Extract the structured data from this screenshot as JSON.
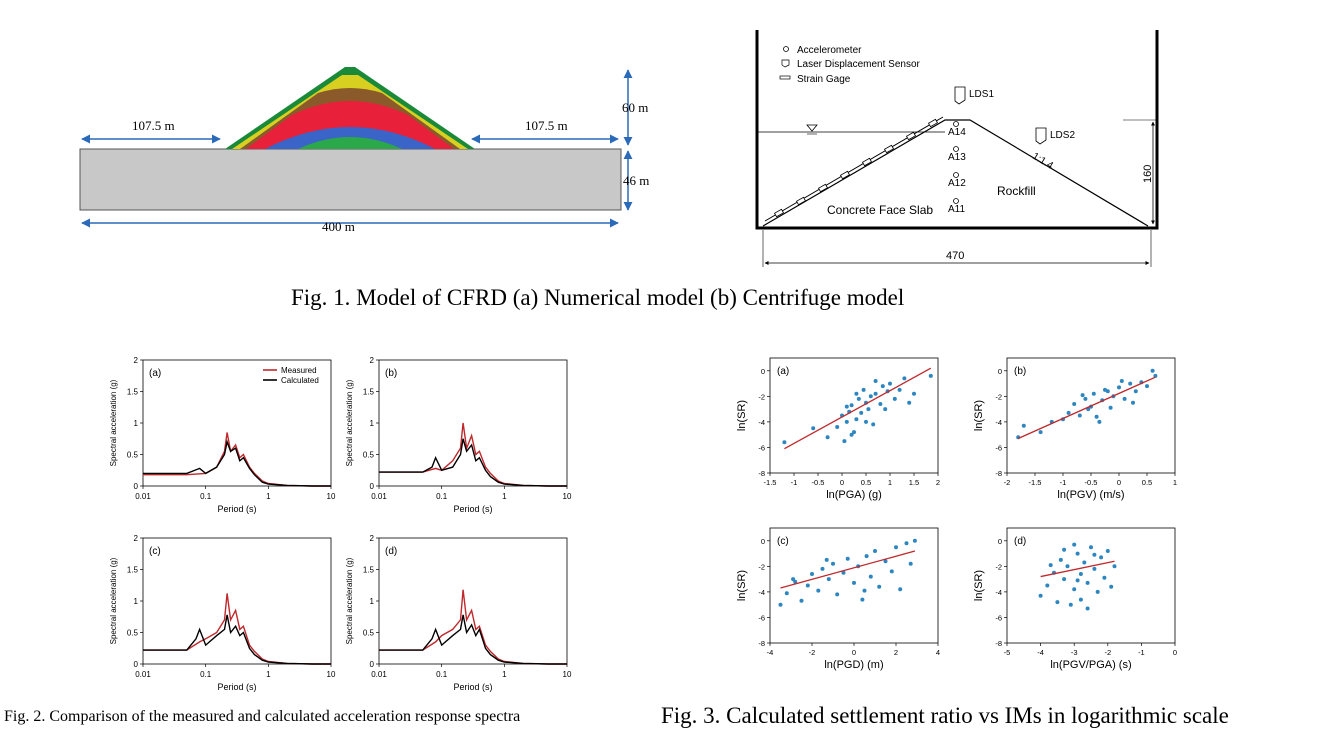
{
  "fig1": {
    "caption": "Fig. 1. Model of CFRD (a) Numerical model (b) Centrifuge model",
    "numerical": {
      "left_width": "107.5 m",
      "right_width": "107.5 m",
      "dam_height": "60 m",
      "foundation_depth": "46 m",
      "total_width": "400 m",
      "layer_colors": [
        "#1a8a3a",
        "#d8d020",
        "#8a5a2a",
        "#e8203a",
        "#3a64c8",
        "#2aa84a"
      ],
      "foundation_color": "#c8c8c8",
      "arrow_color": "#2a6ab8"
    },
    "centrifuge": {
      "legend": [
        "Accelerometer",
        "Laser Displacement Sensor",
        "Strain Gage"
      ],
      "lds1": "LDS1",
      "lds2": "LDS2",
      "slope": "1:1.4",
      "accelerometers": [
        "A14",
        "A13",
        "A12",
        "A11"
      ],
      "face_slab": "Concrete Face Slab",
      "rockfill": "Rockfill",
      "height": "160",
      "width": "470"
    }
  },
  "fig2": {
    "caption": "Fig. 2. Comparison of the measured and calculated acceleration response spectra",
    "legend": {
      "measured": "Measured",
      "calculated": "Calculated"
    },
    "xlabel": "Period (s)",
    "ylabel": "Spectral acceleration (g)",
    "x_ticks": [
      "0.01",
      "0.1",
      "1",
      "10"
    ],
    "y_ticks": [
      "0",
      "0.5",
      "1",
      "1.5",
      "2"
    ],
    "colors": {
      "measured": "#c0282c",
      "calculated": "#000000"
    }
  },
  "fig3": {
    "caption": "Fig. 3. Calculated settlement ratio vs IMs in logarithmic scale",
    "ylabel": "ln(SR)",
    "colors": {
      "points": "#2e86c1",
      "fit": "#c0282c"
    }
  },
  "chart_data": [
    {
      "type": "line",
      "panel": "(a)",
      "xscale": "log",
      "xlim": [
        0.01,
        10
      ],
      "ylim": [
        0,
        2
      ],
      "xlabel": "Period (s)",
      "ylabel": "Spectral acceleration (g)",
      "series": [
        {
          "name": "Measured",
          "x": [
            0.01,
            0.05,
            0.1,
            0.15,
            0.2,
            0.22,
            0.25,
            0.3,
            0.35,
            0.4,
            0.5,
            0.6,
            0.8,
            1,
            2,
            5,
            10
          ],
          "y": [
            0.18,
            0.18,
            0.2,
            0.3,
            0.55,
            0.85,
            0.55,
            0.65,
            0.45,
            0.5,
            0.3,
            0.2,
            0.08,
            0.04,
            0.01,
            0.0,
            0.0
          ]
        },
        {
          "name": "Calculated",
          "x": [
            0.01,
            0.05,
            0.08,
            0.1,
            0.15,
            0.2,
            0.22,
            0.25,
            0.3,
            0.35,
            0.4,
            0.5,
            0.6,
            0.8,
            1,
            2,
            5,
            10
          ],
          "y": [
            0.2,
            0.2,
            0.28,
            0.2,
            0.3,
            0.5,
            0.7,
            0.55,
            0.6,
            0.4,
            0.45,
            0.28,
            0.18,
            0.06,
            0.03,
            0.01,
            0.0,
            0.0
          ]
        }
      ]
    },
    {
      "type": "line",
      "panel": "(b)",
      "xscale": "log",
      "xlim": [
        0.01,
        10
      ],
      "ylim": [
        0,
        2
      ],
      "xlabel": "Period (s)",
      "ylabel": "Spectral acceleration (g)",
      "series": [
        {
          "name": "Measured",
          "x": [
            0.01,
            0.05,
            0.08,
            0.1,
            0.15,
            0.2,
            0.22,
            0.25,
            0.3,
            0.35,
            0.4,
            0.5,
            0.6,
            0.8,
            1,
            2,
            5,
            10
          ],
          "y": [
            0.22,
            0.22,
            0.28,
            0.25,
            0.4,
            0.6,
            1.0,
            0.6,
            0.8,
            0.5,
            0.55,
            0.3,
            0.2,
            0.08,
            0.04,
            0.01,
            0.0,
            0.0
          ]
        },
        {
          "name": "Calculated",
          "x": [
            0.01,
            0.05,
            0.07,
            0.08,
            0.1,
            0.15,
            0.2,
            0.22,
            0.25,
            0.3,
            0.35,
            0.4,
            0.5,
            0.6,
            0.8,
            1,
            2,
            5,
            10
          ],
          "y": [
            0.22,
            0.22,
            0.3,
            0.45,
            0.25,
            0.3,
            0.5,
            0.75,
            0.55,
            0.65,
            0.4,
            0.45,
            0.25,
            0.15,
            0.06,
            0.03,
            0.01,
            0.0,
            0.0
          ]
        }
      ]
    },
    {
      "type": "line",
      "panel": "(c)",
      "xscale": "log",
      "xlim": [
        0.01,
        10
      ],
      "ylim": [
        0,
        2
      ],
      "xlabel": "Period (s)",
      "ylabel": "Spectral acceleration (g)",
      "series": [
        {
          "name": "Measured",
          "x": [
            0.01,
            0.05,
            0.08,
            0.1,
            0.15,
            0.2,
            0.22,
            0.25,
            0.3,
            0.35,
            0.4,
            0.5,
            0.6,
            0.8,
            1,
            2,
            5,
            10
          ],
          "y": [
            0.22,
            0.22,
            0.35,
            0.4,
            0.5,
            0.7,
            1.12,
            0.7,
            0.85,
            0.55,
            0.6,
            0.3,
            0.2,
            0.08,
            0.04,
            0.01,
            0.0,
            0.0
          ]
        },
        {
          "name": "Calculated",
          "x": [
            0.01,
            0.05,
            0.07,
            0.08,
            0.1,
            0.15,
            0.2,
            0.22,
            0.25,
            0.3,
            0.35,
            0.4,
            0.5,
            0.6,
            0.8,
            1,
            2,
            5,
            10
          ],
          "y": [
            0.22,
            0.22,
            0.4,
            0.55,
            0.3,
            0.45,
            0.55,
            0.78,
            0.5,
            0.6,
            0.45,
            0.5,
            0.25,
            0.15,
            0.06,
            0.03,
            0.01,
            0.0,
            0.0
          ]
        }
      ]
    },
    {
      "type": "line",
      "panel": "(d)",
      "xscale": "log",
      "xlim": [
        0.01,
        10
      ],
      "ylim": [
        0,
        2
      ],
      "xlabel": "Period (s)",
      "ylabel": "Spectral acceleration (g)",
      "series": [
        {
          "name": "Measured",
          "x": [
            0.01,
            0.05,
            0.08,
            0.1,
            0.15,
            0.2,
            0.22,
            0.25,
            0.3,
            0.35,
            0.4,
            0.5,
            0.6,
            0.8,
            1,
            2,
            5,
            10
          ],
          "y": [
            0.22,
            0.22,
            0.35,
            0.45,
            0.55,
            0.7,
            1.18,
            0.7,
            0.85,
            0.55,
            0.6,
            0.3,
            0.2,
            0.08,
            0.04,
            0.01,
            0.0,
            0.0
          ]
        },
        {
          "name": "Calculated",
          "x": [
            0.01,
            0.05,
            0.07,
            0.08,
            0.1,
            0.15,
            0.2,
            0.22,
            0.25,
            0.3,
            0.35,
            0.4,
            0.5,
            0.6,
            0.8,
            1,
            2,
            5,
            10
          ],
          "y": [
            0.22,
            0.22,
            0.4,
            0.55,
            0.3,
            0.45,
            0.55,
            0.78,
            0.5,
            0.62,
            0.45,
            0.55,
            0.25,
            0.15,
            0.06,
            0.03,
            0.01,
            0.0,
            0.0
          ]
        }
      ]
    },
    {
      "type": "scatter",
      "panel": "(a)",
      "xlabel": "ln(PGA) (g)",
      "ylabel": "ln(SR)",
      "xlim": [
        -1.5,
        2
      ],
      "ylim": [
        -8,
        1
      ],
      "x_ticks": [
        "-1.5",
        "-1",
        "-0.5",
        "0",
        "0.5",
        "1",
        "1.5",
        "2"
      ],
      "y_ticks": [
        "-8",
        "-6",
        "-4",
        "-2",
        "0"
      ],
      "fit": {
        "x": [
          -1.2,
          1.85
        ],
        "y": [
          -6.1,
          0.2
        ]
      },
      "points": [
        [
          -1.2,
          -5.6
        ],
        [
          -0.6,
          -4.5
        ],
        [
          -0.3,
          -5.2
        ],
        [
          -0.1,
          -4.4
        ],
        [
          0.0,
          -3.5
        ],
        [
          0.05,
          -5.5
        ],
        [
          0.1,
          -4.0
        ],
        [
          0.15,
          -3.2
        ],
        [
          0.2,
          -2.7
        ],
        [
          0.25,
          -4.8
        ],
        [
          0.3,
          -3.8
        ],
        [
          0.35,
          -2.2
        ],
        [
          0.4,
          -3.3
        ],
        [
          0.45,
          -1.5
        ],
        [
          0.5,
          -2.5
        ],
        [
          0.55,
          -3.0
        ],
        [
          0.6,
          -2.0
        ],
        [
          0.65,
          -4.2
        ],
        [
          0.7,
          -1.8
        ],
        [
          0.8,
          -2.6
        ],
        [
          0.85,
          -1.2
        ],
        [
          0.9,
          -3.0
        ],
        [
          1.0,
          -1.0
        ],
        [
          1.1,
          -2.2
        ],
        [
          1.2,
          -1.5
        ],
        [
          1.3,
          -0.6
        ],
        [
          1.4,
          -2.5
        ],
        [
          1.5,
          -1.8
        ],
        [
          1.85,
          -0.4
        ],
        [
          0.2,
          -5.0
        ],
        [
          0.1,
          -2.8
        ],
        [
          0.3,
          -1.8
        ],
        [
          0.5,
          -4.0
        ],
        [
          0.7,
          -0.8
        ],
        [
          0.95,
          -1.6
        ]
      ]
    },
    {
      "type": "scatter",
      "panel": "(b)",
      "xlabel": "ln(PGV) (m/s)",
      "ylabel": "ln(SR)",
      "xlim": [
        -2,
        1
      ],
      "ylim": [
        -8,
        1
      ],
      "x_ticks": [
        "-2",
        "-1.5",
        "-1",
        "-0.5",
        "0",
        "0.5",
        "1"
      ],
      "y_ticks": [
        "-8",
        "-6",
        "-4",
        "-2",
        "0"
      ],
      "fit": {
        "x": [
          -1.8,
          0.65
        ],
        "y": [
          -5.3,
          -0.5
        ]
      },
      "points": [
        [
          -1.8,
          -5.2
        ],
        [
          -1.7,
          -4.3
        ],
        [
          -1.4,
          -4.8
        ],
        [
          -1.2,
          -4.0
        ],
        [
          -1.0,
          -3.8
        ],
        [
          -0.9,
          -3.3
        ],
        [
          -0.8,
          -2.6
        ],
        [
          -0.7,
          -3.5
        ],
        [
          -0.6,
          -2.2
        ],
        [
          -0.55,
          -3.0
        ],
        [
          -0.5,
          -2.8
        ],
        [
          -0.45,
          -1.8
        ],
        [
          -0.4,
          -3.6
        ],
        [
          -0.3,
          -2.3
        ],
        [
          -0.2,
          -1.6
        ],
        [
          -0.15,
          -2.9
        ],
        [
          -0.1,
          -2.0
        ],
        [
          0.0,
          -1.3
        ],
        [
          0.1,
          -2.2
        ],
        [
          0.2,
          -1.0
        ],
        [
          0.3,
          -1.6
        ],
        [
          0.4,
          -0.9
        ],
        [
          0.5,
          -1.2
        ],
        [
          0.6,
          0.0
        ],
        [
          0.65,
          -0.4
        ],
        [
          -0.35,
          -4.0
        ],
        [
          -0.25,
          -1.5
        ],
        [
          0.05,
          -0.8
        ],
        [
          -0.65,
          -1.9
        ],
        [
          0.25,
          -2.5
        ]
      ]
    },
    {
      "type": "scatter",
      "panel": "(c)",
      "xlabel": "ln(PGD) (m)",
      "ylabel": "ln(SR)",
      "xlim": [
        -4,
        4
      ],
      "ylim": [
        -8,
        1
      ],
      "x_ticks": [
        "-4",
        "-2",
        "0",
        "2",
        "4"
      ],
      "y_ticks": [
        "-8",
        "-6",
        "-4",
        "-2",
        "0"
      ],
      "fit": {
        "x": [
          -3.5,
          2.9
        ],
        "y": [
          -3.7,
          -0.8
        ]
      },
      "points": [
        [
          -3.5,
          -5.0
        ],
        [
          -3.2,
          -4.1
        ],
        [
          -2.8,
          -3.2
        ],
        [
          -2.5,
          -4.7
        ],
        [
          -2.2,
          -3.5
        ],
        [
          -2.0,
          -2.6
        ],
        [
          -1.7,
          -3.9
        ],
        [
          -1.5,
          -2.2
        ],
        [
          -1.2,
          -3.0
        ],
        [
          -1.0,
          -1.8
        ],
        [
          -0.8,
          -4.2
        ],
        [
          -0.5,
          -2.5
        ],
        [
          -0.3,
          -1.4
        ],
        [
          0.0,
          -3.3
        ],
        [
          0.2,
          -2.0
        ],
        [
          0.4,
          -4.6
        ],
        [
          0.6,
          -1.2
        ],
        [
          0.8,
          -2.8
        ],
        [
          1.0,
          -0.8
        ],
        [
          1.2,
          -3.6
        ],
        [
          1.5,
          -1.6
        ],
        [
          1.8,
          -2.4
        ],
        [
          2.0,
          -0.5
        ],
        [
          2.2,
          -3.8
        ],
        [
          2.5,
          -0.2
        ],
        [
          2.7,
          -1.8
        ],
        [
          2.9,
          0.0
        ],
        [
          -2.9,
          -3.0
        ],
        [
          -1.3,
          -1.5
        ],
        [
          0.5,
          -3.9
        ]
      ]
    },
    {
      "type": "scatter",
      "panel": "(d)",
      "xlabel": "ln(PGV/PGA) (s)",
      "ylabel": "ln(SR)",
      "xlim": [
        -5,
        0
      ],
      "ylim": [
        -8,
        1
      ],
      "x_ticks": [
        "-5",
        "-4",
        "-3",
        "-2",
        "-1",
        "0"
      ],
      "y_ticks": [
        "-8",
        "-6",
        "-4",
        "-2",
        "0"
      ],
      "fit": {
        "x": [
          -4.0,
          -1.8
        ],
        "y": [
          -2.8,
          -1.6
        ]
      },
      "points": [
        [
          -4.0,
          -4.3
        ],
        [
          -3.8,
          -3.5
        ],
        [
          -3.6,
          -2.5
        ],
        [
          -3.5,
          -4.8
        ],
        [
          -3.4,
          -1.5
        ],
        [
          -3.3,
          -3.0
        ],
        [
          -3.2,
          -2.0
        ],
        [
          -3.1,
          -5.0
        ],
        [
          -3.0,
          -0.3
        ],
        [
          -3.0,
          -3.8
        ],
        [
          -2.9,
          -1.0
        ],
        [
          -2.8,
          -2.6
        ],
        [
          -2.8,
          -4.6
        ],
        [
          -2.7,
          -1.7
        ],
        [
          -2.6,
          -3.3
        ],
        [
          -2.5,
          -0.5
        ],
        [
          -2.4,
          -2.2
        ],
        [
          -2.3,
          -4.0
        ],
        [
          -2.2,
          -1.3
        ],
        [
          -2.1,
          -2.9
        ],
        [
          -2.0,
          -0.8
        ],
        [
          -1.9,
          -3.6
        ],
        [
          -1.8,
          -2.0
        ],
        [
          -3.3,
          -0.7
        ],
        [
          -2.6,
          -5.3
        ],
        [
          -3.7,
          -1.9
        ],
        [
          -2.9,
          -3.1
        ],
        [
          -2.4,
          -1.1
        ]
      ]
    }
  ]
}
